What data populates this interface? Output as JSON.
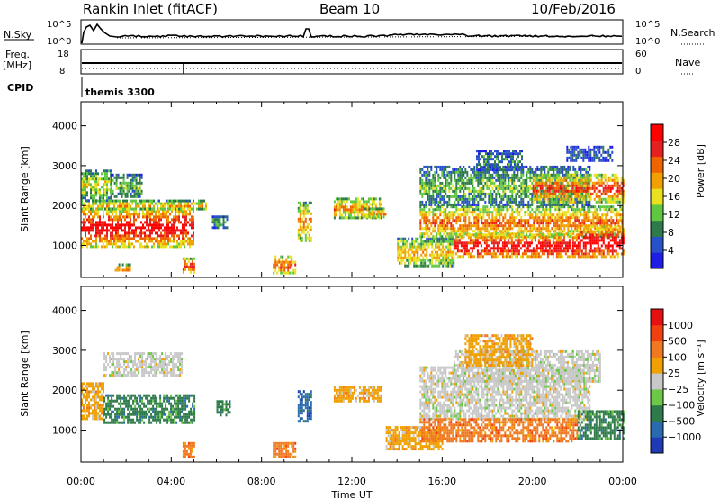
{
  "header": {
    "title": "Rankin Inlet (fitACF)",
    "beam": "Beam 10",
    "date": "10/Feb/2016"
  },
  "top_panels": {
    "nsky_label": "N.Sky",
    "nsearch_label": "N.Search",
    "nsky_ticks": [
      "10^5",
      "10^0"
    ],
    "freq_label": "Freq.",
    "freq_unit": "[MHz]",
    "freq_ticks": [
      "18",
      "8"
    ],
    "nave_label": "Nave",
    "nave_ticks": [
      "60",
      "0"
    ],
    "cpid_label": "CPID",
    "cpid_value": "themis 3300"
  },
  "colors": {
    "power": [
      "#1e1ee6",
      "#2850c8",
      "#2f7a4a",
      "#5fc840",
      "#e8e020",
      "#f0a000",
      "#f06400",
      "#e62020",
      "#ff0000"
    ],
    "velocity": [
      "#1e3ab4",
      "#2a6bb0",
      "#2f7a4a",
      "#6dc84a",
      "#c8c8c8",
      "#f0a000",
      "#f07820",
      "#f04010",
      "#e61010"
    ]
  },
  "chart_data": [
    {
      "type": "heatmap",
      "name_label": "Power",
      "ylabel": "Slant Range [km]",
      "xlabel": "",
      "ylim": [
        200,
        4600
      ],
      "y_ticks": [
        1000,
        2000,
        3000,
        4000
      ],
      "x_range_hours": [
        0,
        24
      ],
      "x_ticks": [
        "00:00",
        "04:00",
        "08:00",
        "12:00",
        "16:00",
        "20:00",
        "00:00"
      ],
      "colorbar": {
        "label": "Power [dB]",
        "min": 0,
        "max": 32,
        "ticks": [
          4,
          8,
          12,
          16,
          20,
          24,
          28
        ]
      },
      "echo_regions": [
        {
          "t0": 0.0,
          "t1": 1.3,
          "r0": 2150,
          "r1": 2900,
          "level": 0.45
        },
        {
          "t0": 1.3,
          "t1": 2.7,
          "r0": 2200,
          "r1": 2800,
          "level": 0.35
        },
        {
          "t0": 0.0,
          "t1": 5.0,
          "r0": 1000,
          "r1": 1950,
          "level": 0.85
        },
        {
          "t0": 0.0,
          "t1": 5.6,
          "r0": 1900,
          "r1": 2150,
          "level": 0.55
        },
        {
          "t0": 5.8,
          "t1": 6.5,
          "r0": 1450,
          "r1": 1750,
          "level": 0.3
        },
        {
          "t0": 1.5,
          "t1": 2.2,
          "r0": 350,
          "r1": 550,
          "level": 0.7
        },
        {
          "t0": 4.5,
          "t1": 5.0,
          "r0": 300,
          "r1": 700,
          "level": 0.75
        },
        {
          "t0": 8.5,
          "t1": 9.5,
          "r0": 300,
          "r1": 750,
          "level": 0.7
        },
        {
          "t0": 9.6,
          "t1": 10.2,
          "r0": 1100,
          "r1": 2100,
          "level": 0.6
        },
        {
          "t0": 11.2,
          "t1": 13.3,
          "r0": 1700,
          "r1": 2200,
          "level": 0.6
        },
        {
          "t0": 12.5,
          "t1": 13.5,
          "r0": 1700,
          "r1": 1950,
          "level": 0.6
        },
        {
          "t0": 14.0,
          "t1": 16.5,
          "r0": 500,
          "r1": 1200,
          "level": 0.55
        },
        {
          "t0": 15.0,
          "t1": 24.0,
          "r0": 1200,
          "r1": 2000,
          "level": 0.65
        },
        {
          "t0": 16.5,
          "t1": 22.0,
          "r0": 700,
          "r1": 1300,
          "level": 0.9
        },
        {
          "t0": 22.0,
          "t1": 24.0,
          "r0": 700,
          "r1": 1500,
          "level": 0.95
        },
        {
          "t0": 15.0,
          "t1": 22.5,
          "r0": 2000,
          "r1": 3000,
          "level": 0.35
        },
        {
          "t0": 20.0,
          "t1": 24.0,
          "r0": 2100,
          "r1": 2800,
          "level": 0.75
        },
        {
          "t0": 17.5,
          "t1": 19.5,
          "r0": 2900,
          "r1": 3400,
          "level": 0.25
        },
        {
          "t0": 21.5,
          "t1": 23.5,
          "r0": 3100,
          "r1": 3500,
          "level": 0.2
        }
      ]
    },
    {
      "type": "heatmap",
      "name_label": "Velocity",
      "ylabel": "Slant Range [km]",
      "xlabel": "Time UT",
      "ylim": [
        200,
        4600
      ],
      "y_ticks": [
        1000,
        2000,
        3000,
        4000
      ],
      "x_range_hours": [
        0,
        24
      ],
      "x_ticks": [
        "00:00",
        "04:00",
        "08:00",
        "12:00",
        "16:00",
        "20:00",
        "00:00"
      ],
      "colorbar": {
        "label": "Velocity [m s⁻¹]",
        "ticks": [
          "1000",
          "500",
          "100",
          "25",
          "−25",
          "−100",
          "−500",
          "−1000"
        ]
      },
      "echo_regions": [
        {
          "t0": 0.0,
          "t1": 1.0,
          "r0": 1300,
          "r1": 2200,
          "level": 5
        },
        {
          "t0": 1.0,
          "t1": 5.0,
          "r0": 1200,
          "r1": 1900,
          "level": 2
        },
        {
          "t0": 1.0,
          "t1": 4.5,
          "r0": 2400,
          "r1": 2950,
          "level": 4
        },
        {
          "t0": 4.5,
          "t1": 5.0,
          "r0": 300,
          "r1": 700,
          "level": 6
        },
        {
          "t0": 6.0,
          "t1": 6.6,
          "r0": 1400,
          "r1": 1750,
          "level": 2
        },
        {
          "t0": 8.5,
          "t1": 9.5,
          "r0": 300,
          "r1": 700,
          "level": 6
        },
        {
          "t0": 9.6,
          "t1": 10.2,
          "r0": 1200,
          "r1": 2000,
          "level": 1
        },
        {
          "t0": 11.2,
          "t1": 13.3,
          "r0": 1700,
          "r1": 2100,
          "level": 5
        },
        {
          "t0": 13.5,
          "t1": 16.0,
          "r0": 500,
          "r1": 1100,
          "level": 5
        },
        {
          "t0": 15.0,
          "t1": 22.5,
          "r0": 1300,
          "r1": 2600,
          "level": 4
        },
        {
          "t0": 15.0,
          "t1": 22.0,
          "r0": 700,
          "r1": 1300,
          "level": 6
        },
        {
          "t0": 22.0,
          "t1": 24.0,
          "r0": 800,
          "r1": 1500,
          "level": 2
        },
        {
          "t0": 16.5,
          "t1": 23.0,
          "r0": 2200,
          "r1": 3000,
          "level": 4
        },
        {
          "t0": 17.0,
          "t1": 20.0,
          "r0": 2600,
          "r1": 3400,
          "level": 5
        }
      ]
    }
  ]
}
